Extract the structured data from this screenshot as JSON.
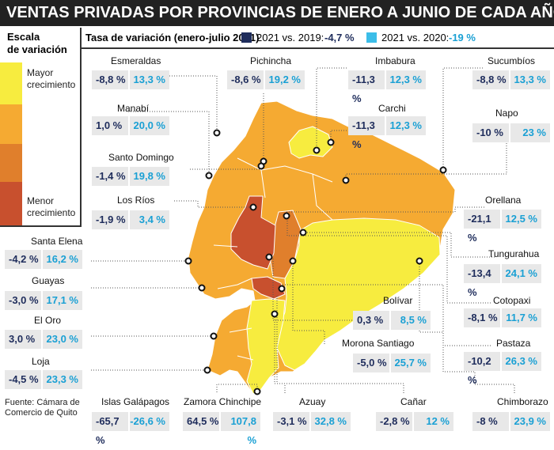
{
  "title": "VENTAS PRIVADAS POR PROVINCIAS DE ENERO A JUNIO DE CADA AÑO",
  "legend": {
    "title_line1": "Escala",
    "title_line2": "de variación",
    "high_line1": "Mayor",
    "high_line2": "crecimiento",
    "low_line1": "Menor",
    "low_line2": "crecimiento",
    "colors": [
      "#f7ec3f",
      "#f5aa32",
      "#e07f2c",
      "#c8502e"
    ]
  },
  "header": {
    "rate_label": "Tasa de variación (enero-julio 2021)",
    "series1_label": "2021 vs. 2019: ",
    "series1_total": "-4,7 %",
    "series2_label": "2021 vs. 2020: ",
    "series2_total": "-19 %"
  },
  "source": "Fuente: Cámara de Comercio de Quito",
  "chart_data": {
    "type": "table",
    "title": "VENTAS PRIVADAS POR PROVINCIAS DE ENERO A JUNIO DE CADA AÑO",
    "subtitle": "Tasa de variación (enero-julio 2021)",
    "series": [
      {
        "name": "2021 vs. 2019",
        "color": "#1f2d5c",
        "total": "-4,7 %"
      },
      {
        "name": "2021 vs. 2020",
        "color": "#3bbde8",
        "total": "-19 %"
      }
    ],
    "provinces": [
      {
        "name": "Esmeraldas",
        "v2019": "-8,8 %",
        "v2020": "13,3 %"
      },
      {
        "name": "Pichincha",
        "v2019": "-8,6 %",
        "v2020": "19,2 %"
      },
      {
        "name": "Imbabura",
        "v2019": "-11,3 %",
        "v2020": "12,3 %"
      },
      {
        "name": "Sucumbíos",
        "v2019": "-8,8 %",
        "v2020": "13,3 %"
      },
      {
        "name": "Manabí",
        "v2019": "1,0 %",
        "v2020": "20,0 %"
      },
      {
        "name": "Carchi",
        "v2019": "-11,3 %",
        "v2020": "12,3 %"
      },
      {
        "name": "Napo",
        "v2019": "-10 %",
        "v2020": "23 %"
      },
      {
        "name": "Santo Domingo",
        "v2019": "-1,4 %",
        "v2020": "19,8 %"
      },
      {
        "name": "Los Ríos",
        "v2019": "-1,9 %",
        "v2020": "3,4 %"
      },
      {
        "name": "Orellana",
        "v2019": "-21,1 %",
        "v2020": "12,5 %"
      },
      {
        "name": "Santa Elena",
        "v2019": "-4,2 %",
        "v2020": "16,2 %"
      },
      {
        "name": "Tungurahua",
        "v2019": "-13,4 %",
        "v2020": "24,1 %"
      },
      {
        "name": "Guayas",
        "v2019": "-3,0 %",
        "v2020": "17,1 %"
      },
      {
        "name": "Bolívar",
        "v2019": "0,3 %",
        "v2020": "8,5 %"
      },
      {
        "name": "Cotopaxi",
        "v2019": "-8,1 %",
        "v2020": "11,7 %"
      },
      {
        "name": "El Oro",
        "v2019": "3,0 %",
        "v2020": "23,0 %"
      },
      {
        "name": "Morona Santiago",
        "v2019": "-5,0 %",
        "v2020": "25,7 %"
      },
      {
        "name": "Pastaza",
        "v2019": "-10,2 %",
        "v2020": "26,3 %"
      },
      {
        "name": "Loja",
        "v2019": "-4,5 %",
        "v2020": "23,3 %"
      },
      {
        "name": "Islas Galápagos",
        "v2019": "-65,7 %",
        "v2020": "-26,6 %"
      },
      {
        "name": "Zamora Chinchipe",
        "v2019": "64,5 %",
        "v2020": "107,8 %"
      },
      {
        "name": "Azuay",
        "v2019": "-3,1 %",
        "v2020": "32,8 %"
      },
      {
        "name": "Cañar",
        "v2019": "-2,8 %",
        "v2020": "12 %"
      },
      {
        "name": "Chimborazo",
        "v2019": "-8 %",
        "v2020": "23,9 %"
      }
    ]
  }
}
